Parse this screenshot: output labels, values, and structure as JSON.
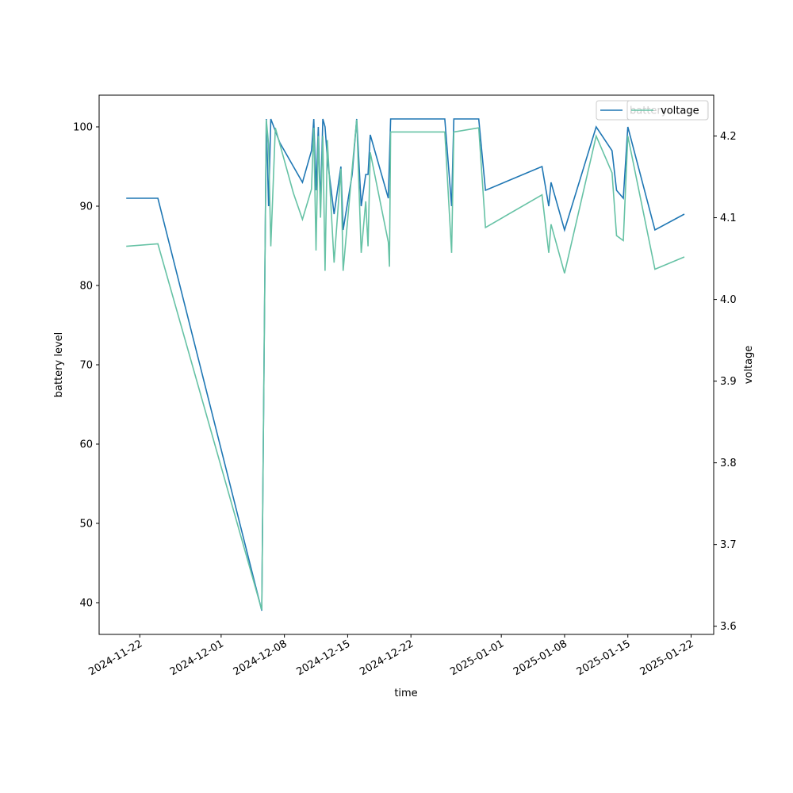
{
  "chart_data": {
    "type": "line",
    "xlabel": "time",
    "ylabel_left": "battery level",
    "ylabel_right": "voltage",
    "x_range": [
      "2024-11-17T12:00",
      "2025-01-24T12:00"
    ],
    "ylim_left": [
      36,
      104
    ],
    "ylim_right": [
      3.59,
      4.25
    ],
    "x_ticks": [
      "2024-11-22",
      "2024-12-01",
      "2024-12-08",
      "2024-12-15",
      "2024-12-22",
      "2025-01-01",
      "2025-01-08",
      "2025-01-15",
      "2025-01-22"
    ],
    "y_ticks_left": [
      "40",
      "50",
      "60",
      "70",
      "80",
      "90",
      "100"
    ],
    "y_ticks_right": [
      "3.6",
      "3.7",
      "3.8",
      "3.9",
      "4.0",
      "4.1",
      "4.2"
    ],
    "grid": false,
    "legend_placement": "top-right",
    "colors": {
      "battery": "#1f77b4",
      "voltage": "#66c2a5"
    },
    "series": [
      {
        "name": "battery",
        "axis": "left",
        "points": [
          [
            "2024-11-20T12:00",
            91
          ],
          [
            "2024-11-24T00:00",
            91
          ],
          [
            "2024-12-05T12:00",
            39
          ],
          [
            "2024-12-06T00:00",
            101
          ],
          [
            "2024-12-06T06:00",
            90
          ],
          [
            "2024-12-06T12:00",
            101
          ],
          [
            "2024-12-07T12:00",
            98
          ],
          [
            "2024-12-09T00:00",
            95
          ],
          [
            "2024-12-10T00:00",
            93
          ],
          [
            "2024-12-11T00:00",
            97
          ],
          [
            "2024-12-11T06:00",
            101
          ],
          [
            "2024-12-11T12:00",
            92
          ],
          [
            "2024-12-11T18:00",
            100
          ],
          [
            "2024-12-12T00:00",
            90
          ],
          [
            "2024-12-12T06:00",
            101
          ],
          [
            "2024-12-12T12:00",
            100
          ],
          [
            "2024-12-12T18:00",
            96
          ],
          [
            "2024-12-13T12:00",
            89
          ],
          [
            "2024-12-14T06:00",
            95
          ],
          [
            "2024-12-14T12:00",
            87
          ],
          [
            "2024-12-15T12:00",
            94
          ],
          [
            "2024-12-16T00:00",
            101
          ],
          [
            "2024-12-16T12:00",
            90
          ],
          [
            "2024-12-17T00:00",
            94
          ],
          [
            "2024-12-17T06:00",
            94
          ],
          [
            "2024-12-17T12:00",
            99
          ],
          [
            "2024-12-19T12:00",
            91
          ],
          [
            "2024-12-19T18:00",
            101
          ],
          [
            "2024-12-25T18:00",
            101
          ],
          [
            "2024-12-26T12:00",
            90
          ],
          [
            "2024-12-26T18:00",
            101
          ],
          [
            "2024-12-29T12:00",
            101
          ],
          [
            "2024-12-30T06:00",
            92
          ],
          [
            "2025-01-05T12:00",
            95
          ],
          [
            "2025-01-06T06:00",
            90
          ],
          [
            "2025-01-06T12:00",
            93
          ],
          [
            "2025-01-08T00:00",
            87
          ],
          [
            "2025-01-11T12:00",
            100
          ],
          [
            "2025-01-13T06:00",
            97
          ],
          [
            "2025-01-13T18:00",
            92
          ],
          [
            "2025-01-14T12:00",
            91
          ],
          [
            "2025-01-15T00:00",
            100
          ],
          [
            "2025-01-18T00:00",
            87
          ],
          [
            "2025-01-21T06:00",
            89
          ]
        ]
      },
      {
        "name": "voltage",
        "axis": "right",
        "points": [
          [
            "2024-11-20T12:00",
            4.065
          ],
          [
            "2024-11-24T00:00",
            4.068
          ],
          [
            "2024-12-05T12:00",
            3.62
          ],
          [
            "2024-12-06T00:00",
            4.22
          ],
          [
            "2024-12-06T06:00",
            4.19
          ],
          [
            "2024-12-06T12:00",
            4.065
          ],
          [
            "2024-12-07T00:00",
            4.21
          ],
          [
            "2024-12-09T00:00",
            4.13
          ],
          [
            "2024-12-10T00:00",
            4.098
          ],
          [
            "2024-12-11T00:00",
            4.135
          ],
          [
            "2024-12-11T06:00",
            4.21
          ],
          [
            "2024-12-11T12:00",
            4.06
          ],
          [
            "2024-12-11T18:00",
            4.2
          ],
          [
            "2024-12-12T00:00",
            4.1
          ],
          [
            "2024-12-12T06:00",
            4.2
          ],
          [
            "2024-12-12T12:00",
            4.035
          ],
          [
            "2024-12-12T18:00",
            4.195
          ],
          [
            "2024-12-13T12:00",
            4.045
          ],
          [
            "2024-12-14T06:00",
            4.16
          ],
          [
            "2024-12-14T12:00",
            4.035
          ],
          [
            "2024-12-15T12:00",
            4.16
          ],
          [
            "2024-12-16T00:00",
            4.22
          ],
          [
            "2024-12-16T12:00",
            4.057
          ],
          [
            "2024-12-17T00:00",
            4.12
          ],
          [
            "2024-12-17T06:00",
            4.065
          ],
          [
            "2024-12-17T12:00",
            4.18
          ],
          [
            "2024-12-19T12:00",
            4.07
          ],
          [
            "2024-12-19T15:00",
            4.04
          ],
          [
            "2024-12-19T18:00",
            4.205
          ],
          [
            "2024-12-25T18:00",
            4.205
          ],
          [
            "2024-12-26T12:00",
            4.057
          ],
          [
            "2024-12-26T18:00",
            4.205
          ],
          [
            "2024-12-29T12:00",
            4.21
          ],
          [
            "2024-12-30T06:00",
            4.088
          ],
          [
            "2025-01-05T12:00",
            4.128
          ],
          [
            "2025-01-06T06:00",
            4.057
          ],
          [
            "2025-01-06T12:00",
            4.092
          ],
          [
            "2025-01-08T00:00",
            4.032
          ],
          [
            "2025-01-11T12:00",
            4.2
          ],
          [
            "2025-01-13T06:00",
            4.155
          ],
          [
            "2025-01-13T18:00",
            4.078
          ],
          [
            "2025-01-14T12:00",
            4.072
          ],
          [
            "2025-01-15T00:00",
            4.2
          ],
          [
            "2025-01-18T00:00",
            4.037
          ],
          [
            "2025-01-21T06:00",
            4.052
          ]
        ]
      }
    ]
  }
}
